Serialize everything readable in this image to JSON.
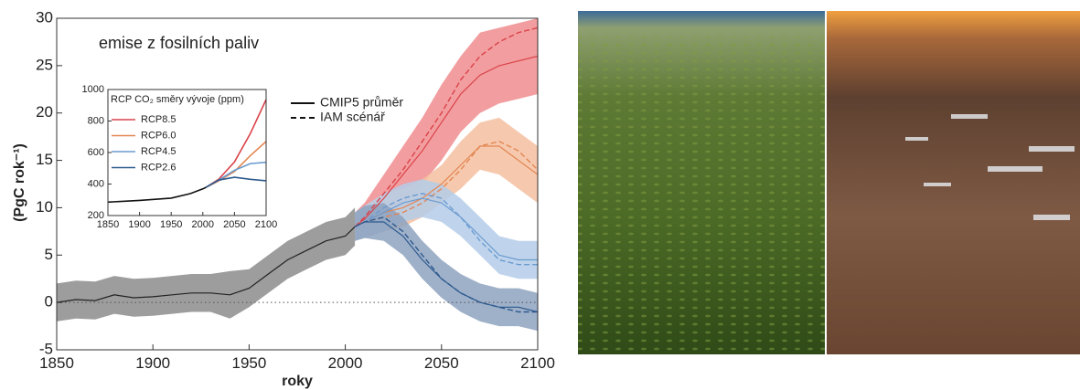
{
  "chart_data": [
    {
      "type": "line",
      "annotation": "emise z fosilních paliv",
      "xlabel": "roky",
      "ylabel": "(PgC rok⁻¹)",
      "legend_labels": [
        "CMIP5 průměr",
        "IAM scénář"
      ],
      "xlim": [
        1850,
        2100
      ],
      "ylim": [
        -5,
        30
      ],
      "xticks": [
        1850,
        1900,
        1950,
        2000,
        2050,
        2100
      ],
      "yticks": [
        -5,
        0,
        5,
        10,
        15,
        20,
        25,
        30
      ],
      "reference_line": 0,
      "series": [
        {
          "color": "#222222",
          "band_color": "#8c8c8c",
          "x": [
            1850,
            1860,
            1870,
            1880,
            1890,
            1900,
            1910,
            1920,
            1930,
            1940,
            1950,
            1960,
            1970,
            1980,
            1990,
            2000,
            2005
          ],
          "values": [
            0,
            0.3,
            0.2,
            0.8,
            0.5,
            0.6,
            0.8,
            1,
            1,
            0.8,
            1.5,
            3,
            4.5,
            5.5,
            6.5,
            7,
            8
          ],
          "lower": [
            -2,
            -1.7,
            -1.8,
            -1.2,
            -1.5,
            -1.4,
            -1.2,
            -1,
            -1,
            -1.7,
            -0.5,
            1,
            2.5,
            3.5,
            4.5,
            5,
            6
          ],
          "upper": [
            2,
            2.3,
            2.2,
            2.8,
            2.5,
            2.6,
            2.8,
            3,
            3,
            3.3,
            3.5,
            5,
            6.5,
            7.5,
            8.5,
            9,
            10
          ]
        },
        {
          "name": "RCP8.5",
          "color": "#d9434a",
          "band_color": "#f08c8e",
          "x": [
            2005,
            2010,
            2020,
            2030,
            2040,
            2050,
            2060,
            2070,
            2080,
            2090,
            2100
          ],
          "values": [
            8,
            8.8,
            11,
            13.5,
            16,
            19,
            22,
            24,
            25,
            25.5,
            26
          ],
          "iam": [
            8,
            9,
            11.5,
            14,
            17,
            20,
            23.5,
            26,
            27.5,
            28.5,
            29
          ],
          "lower": [
            6.5,
            7,
            8.5,
            10.5,
            12.5,
            15,
            18,
            20,
            21,
            21.5,
            22
          ],
          "upper": [
            9.5,
            10.5,
            13.5,
            16.5,
            19.5,
            23,
            26,
            28.5,
            29,
            29.5,
            30
          ]
        },
        {
          "name": "RCP6.0",
          "color": "#e38652",
          "band_color": "#f5bfa0",
          "x": [
            2005,
            2010,
            2020,
            2030,
            2040,
            2050,
            2060,
            2070,
            2080,
            2090,
            2100
          ],
          "values": [
            8,
            8.5,
            9.5,
            10,
            11,
            12.5,
            14.5,
            16.5,
            16.5,
            15,
            13.5
          ],
          "iam": [
            8,
            8.5,
            9,
            9.5,
            10.5,
            12,
            14,
            16.5,
            17,
            16,
            14
          ],
          "lower": [
            6.5,
            6.8,
            7.5,
            8,
            9,
            10.5,
            12,
            14,
            13.5,
            12,
            10.5
          ],
          "upper": [
            9.5,
            10.2,
            11.5,
            12,
            13,
            14.5,
            17,
            19,
            19.5,
            18,
            16.5
          ]
        },
        {
          "name": "RCP4.5",
          "color": "#6b9bd0",
          "band_color": "#b4cde9",
          "x": [
            2005,
            2010,
            2020,
            2030,
            2040,
            2050,
            2060,
            2070,
            2080,
            2090,
            2100
          ],
          "values": [
            8,
            8.5,
            9.5,
            10.5,
            11,
            10.5,
            9,
            7,
            5,
            4.5,
            4.5
          ],
          "iam": [
            8,
            8.5,
            10,
            11,
            11.5,
            11,
            9,
            6.5,
            4.5,
            4,
            4
          ],
          "lower": [
            6.5,
            6.8,
            7.5,
            8.5,
            9,
            8.5,
            7,
            5,
            3,
            2.5,
            2.5
          ],
          "upper": [
            9.5,
            10.2,
            11.5,
            12.5,
            13,
            12.5,
            11,
            9,
            7,
            6.5,
            6.5
          ]
        },
        {
          "name": "RCP2.6",
          "color": "#2d5a8e",
          "band_color": "#8ea2c0",
          "x": [
            2005,
            2010,
            2020,
            2030,
            2040,
            2050,
            2060,
            2070,
            2080,
            2090,
            2100
          ],
          "values": [
            8,
            8.5,
            8.5,
            7,
            4.5,
            2.5,
            1,
            0,
            -0.5,
            -0.5,
            -1
          ],
          "iam": [
            8,
            8.5,
            9,
            7.5,
            5,
            2.5,
            1,
            0,
            -0.5,
            -1,
            -1
          ],
          "lower": [
            6.5,
            6.8,
            6.5,
            5,
            2.5,
            0.5,
            -1,
            -2,
            -2.5,
            -2.5,
            -3
          ],
          "upper": [
            9.5,
            10.2,
            10.5,
            9,
            6.5,
            4.5,
            3,
            2,
            1.5,
            1.5,
            1
          ]
        }
      ]
    },
    {
      "type": "line",
      "title": "RCP CO₂ směry vývoje (ppm)",
      "xlim": [
        1850,
        2100
      ],
      "ylim": [
        200,
        1000
      ],
      "xticks": [
        1850,
        1900,
        1950,
        2000,
        2050,
        2100
      ],
      "yticks": [
        200,
        400,
        600,
        800,
        1000
      ],
      "series": [
        {
          "color": "#111111",
          "x": [
            1850,
            1900,
            1950,
            1980,
            2000,
            2005
          ],
          "values": [
            285,
            296,
            311,
            339,
            369,
            379
          ]
        },
        {
          "name": "RCP8.5",
          "color": "#d9434a",
          "x": [
            2005,
            2025,
            2050,
            2075,
            2100
          ],
          "values": [
            379,
            430,
            540,
            720,
            936
          ]
        },
        {
          "name": "RCP6.0",
          "color": "#e38652",
          "x": [
            2005,
            2025,
            2050,
            2075,
            2100
          ],
          "values": [
            379,
            420,
            480,
            580,
            670
          ]
        },
        {
          "name": "RCP4.5",
          "color": "#6b9bd0",
          "x": [
            2005,
            2025,
            2050,
            2075,
            2100
          ],
          "values": [
            379,
            425,
            487,
            530,
            538
          ]
        },
        {
          "name": "RCP2.6",
          "color": "#2d5a8e",
          "x": [
            2005,
            2025,
            2050,
            2075,
            2100
          ],
          "values": [
            379,
            425,
            443,
            430,
            421
          ]
        }
      ]
    }
  ]
}
